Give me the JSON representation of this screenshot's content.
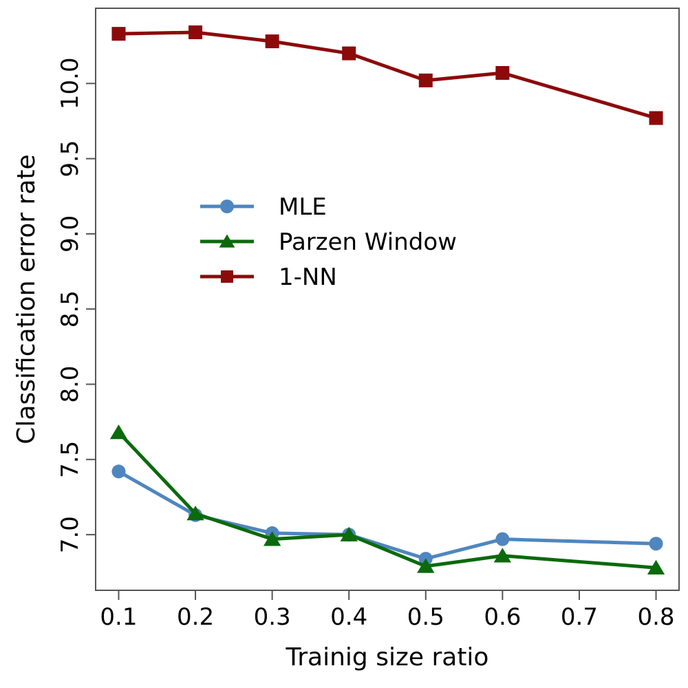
{
  "chart_data": {
    "type": "line",
    "title": "",
    "xlabel": "Trainig size ratio",
    "ylabel": "Classification error rate",
    "xlim": [
      0.07,
      0.83
    ],
    "ylim": [
      6.63,
      10.5
    ],
    "xticks": [
      0.1,
      0.2,
      0.3,
      0.4,
      0.5,
      0.6,
      0.7,
      0.8
    ],
    "xtick_labels": [
      "0.1",
      "0.2",
      "0.3",
      "0.4",
      "0.5",
      "0.6",
      "0.7",
      "0.8"
    ],
    "yticks": [
      7.0,
      7.5,
      8.0,
      8.5,
      9.0,
      9.5,
      10.0
    ],
    "ytick_labels": [
      "7.0",
      "7.5",
      "8.0",
      "8.5",
      "9.0",
      "9.5",
      "10.0"
    ],
    "grid": false,
    "legend_position": "center-left",
    "x": [
      0.1,
      0.2,
      0.3,
      0.4,
      0.5,
      0.6,
      0.8
    ],
    "series": [
      {
        "name": "MLE",
        "marker": "circle",
        "color": "#4f86bf",
        "values": [
          7.42,
          7.13,
          7.01,
          7.0,
          6.84,
          6.97,
          6.94
        ]
      },
      {
        "name": "Parzen Window",
        "marker": "triangle",
        "color": "#0b6a0b",
        "values": [
          7.68,
          7.14,
          6.97,
          7.0,
          6.79,
          6.86,
          6.78
        ]
      },
      {
        "name": "1-NN",
        "marker": "square",
        "color": "#8c0a0a",
        "values": [
          10.33,
          10.34,
          10.28,
          10.2,
          10.02,
          10.07,
          9.77
        ]
      }
    ]
  }
}
